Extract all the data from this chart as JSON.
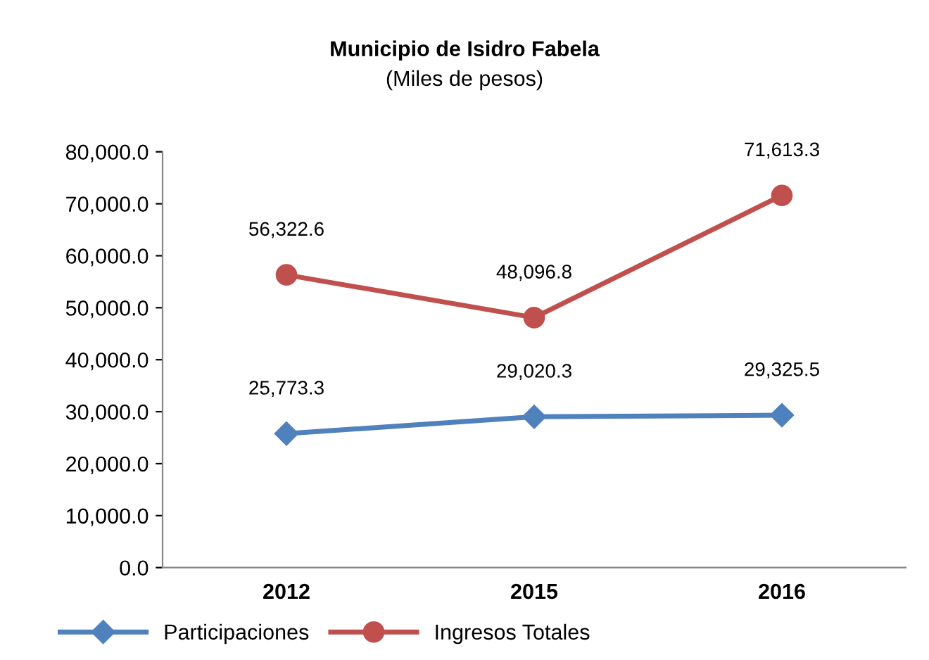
{
  "chart_data": {
    "type": "line",
    "title": "Municipio de Isidro Fabela",
    "subtitle": "(Miles de pesos)",
    "categories": [
      "2012",
      "2015",
      "2016"
    ],
    "series": [
      {
        "name": "Participaciones",
        "color": "#4f81bd",
        "marker": "diamond",
        "values": [
          25773.3,
          29020.3,
          29325.5
        ],
        "value_labels": [
          "25,773.3",
          "29,020.3",
          "29,325.5"
        ]
      },
      {
        "name": "Ingresos Totales",
        "color": "#c0504d",
        "marker": "circle",
        "values": [
          56322.6,
          48096.8,
          71613.3
        ],
        "value_labels": [
          "56,322.6",
          "48,096.8",
          "71,613.3"
        ]
      }
    ],
    "ylim": [
      0,
      80000
    ],
    "yticks": [
      {
        "value": 0,
        "label": "0.0"
      },
      {
        "value": 10000,
        "label": "10,000.0"
      },
      {
        "value": 20000,
        "label": "20,000.0"
      },
      {
        "value": 30000,
        "label": "30,000.0"
      },
      {
        "value": 40000,
        "label": "40,000.0"
      },
      {
        "value": 50000,
        "label": "50,000.0"
      },
      {
        "value": 60000,
        "label": "60,000.0"
      },
      {
        "value": 70000,
        "label": "70,000.0"
      },
      {
        "value": 80000,
        "label": "80,000.0"
      }
    ],
    "grid": false,
    "legend": "bottom"
  }
}
